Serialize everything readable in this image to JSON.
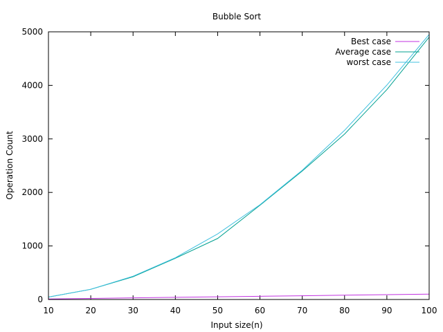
{
  "chart_data": {
    "type": "line",
    "title": "Bubble Sort",
    "xlabel": "Input size(n)",
    "ylabel": "Operation Count",
    "xlim": [
      10,
      100
    ],
    "ylim": [
      0,
      5000
    ],
    "x_ticks": [
      10,
      20,
      30,
      40,
      50,
      60,
      70,
      80,
      90,
      100
    ],
    "y_ticks": [
      0,
      1000,
      2000,
      3000,
      4000,
      5000
    ],
    "grid": false,
    "legend_position": "top-right",
    "x": [
      10,
      20,
      30,
      40,
      50,
      60,
      70,
      80,
      90,
      100
    ],
    "series": [
      {
        "name": "Best case",
        "color": "#c030e0",
        "values": [
          10,
          20,
          30,
          40,
          50,
          60,
          70,
          80,
          90,
          100
        ]
      },
      {
        "name": "Average case",
        "color": "#00a090",
        "values": [
          45,
          190,
          425,
          770,
          1140,
          1760,
          2400,
          3090,
          3920,
          4900
        ]
      },
      {
        "name": "worst case",
        "color": "#40c0e0",
        "values": [
          45,
          190,
          435,
          780,
          1225,
          1770,
          2415,
          3160,
          4005,
          4950
        ]
      }
    ]
  }
}
